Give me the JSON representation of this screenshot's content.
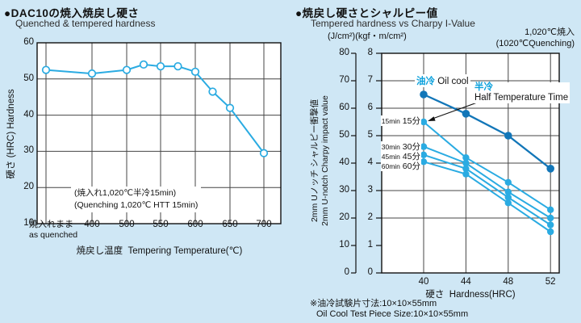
{
  "page": {
    "background_color": "#cfe7f5"
  },
  "colors": {
    "light_blue_line": "#2aabe2",
    "dark_blue_line": "#1276b8",
    "grid": "#444444",
    "frame": "#111111",
    "cyan_text": "#0aa0dc"
  },
  "chart_data": [
    {
      "id": "quenched-tempered-hardness",
      "type": "line",
      "title_jp": "●DAC10の焼入焼戻し硬さ",
      "title_en": "Quenched & tempered hardness",
      "ylabel": "硬さ (HRC) Hardness",
      "xlabel_jp": "焼戻し温度",
      "xlabel_en": "Tempering Temperature(℃)",
      "y_ticks": [
        60,
        50,
        40,
        30,
        20,
        10
      ],
      "ylim": [
        10,
        60
      ],
      "grid": true,
      "x_tick_labels": [
        {
          "jp": "焼入れまま",
          "en": "as quenched"
        },
        {
          "label": "400"
        },
        {
          "label": "500"
        },
        {
          "label": "550"
        },
        {
          "label": "600"
        },
        {
          "label": "650"
        },
        {
          "label": "700"
        }
      ],
      "annotation_line1": "(焼入れ1,020℃半冷15min)",
      "annotation_line2": "(Quenching 1,020℃ HTT 15min)",
      "series": [
        {
          "name": "tempered hardness",
          "color": "#2aabe2",
          "marker": "open-circle",
          "points": [
            {
              "x": "as quenched",
              "y": 52.5
            },
            {
              "x": 400,
              "y": 51.5
            },
            {
              "x": 500,
              "y": 52.5
            },
            {
              "x": 525,
              "y": 54
            },
            {
              "x": 550,
              "y": 53.5
            },
            {
              "x": 575,
              "y": 53.5
            },
            {
              "x": 600,
              "y": 52
            },
            {
              "x": 625,
              "y": 46.5
            },
            {
              "x": 650,
              "y": 42
            },
            {
              "x": 700,
              "y": 29.5
            }
          ]
        }
      ]
    },
    {
      "id": "hardness-vs-charpy",
      "type": "line",
      "title_jp": "●焼戻し硬さとシャルピー値",
      "title_en": "Tempered hardness vs Charpy I-Value",
      "units_label": "(J/cm²)(kgf・m/cm²)",
      "condition_jp": "1,020℃焼入",
      "condition_en": "(1020℃Quenching)",
      "ylabel_jp": "2mm Uノッチ シャルピー衝撃値",
      "ylabel_en": "2mm U-notch Charpy impact value",
      "xlabel_jp": "硬さ",
      "xlabel_en": "Hardness(HRC)",
      "x": [
        40,
        44,
        48,
        52
      ],
      "outer_y_ticks": [
        80,
        70,
        60,
        50,
        40,
        30,
        20,
        10,
        0
      ],
      "inner_y_ticks": [
        8,
        7,
        6,
        5,
        4,
        3,
        2,
        1,
        0
      ],
      "ylim_j": [
        0,
        80
      ],
      "grid": true,
      "legend_oil_jp": "油冷",
      "legend_oil_en": "Oil cool",
      "legend_half_jp": "半冷",
      "legend_half_en": "Half Temperature Time",
      "point_labels": [
        {
          "en": "15min",
          "jp": "15分"
        },
        {
          "en": "30min",
          "jp": "30分"
        },
        {
          "en": "45min",
          "jp": "45分"
        },
        {
          "en": "60min",
          "jp": "60分"
        }
      ],
      "series": [
        {
          "name": "油冷 Oil cool",
          "key": "oil-cool",
          "color": "#1276b8",
          "values_j": [
            65,
            58,
            50,
            38
          ]
        },
        {
          "name": "半冷 15min",
          "key": "htt-15min",
          "color": "#2aabe2",
          "values_j": [
            55,
            42,
            33,
            23
          ]
        },
        {
          "name": "半冷 30min",
          "key": "htt-30min",
          "color": "#2aabe2",
          "values_j": [
            46,
            40,
            29.5,
            20
          ]
        },
        {
          "name": "半冷 45min",
          "key": "htt-45min",
          "color": "#2aabe2",
          "values_j": [
            43,
            38,
            27.5,
            17.5
          ]
        },
        {
          "name": "半冷 60min",
          "key": "htt-60min",
          "color": "#2aabe2",
          "values_j": [
            40.5,
            36,
            25.5,
            15
          ]
        }
      ],
      "footnote_jp": "※油冷試験片寸法:10×10×55mm",
      "footnote_en": "Oil Cool Test Piece Size:10×10×55mm"
    }
  ]
}
